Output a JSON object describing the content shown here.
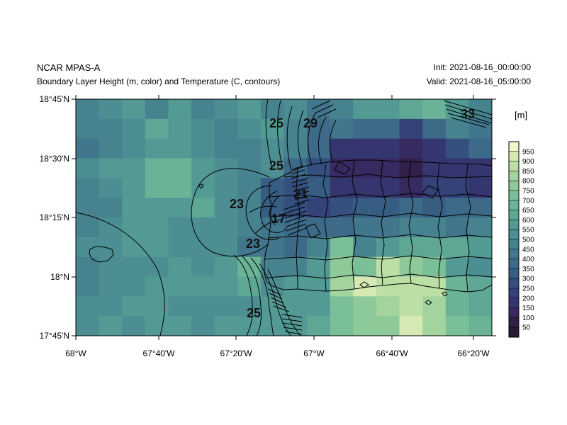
{
  "header": {
    "model": "NCAR MPAS-A",
    "description": "Boundary Layer Height (m, color) and Temperature (C, contours)",
    "init": "Init: 2021-08-16_00:00:00",
    "valid": "Valid: 2021-08-16_05:00:00"
  },
  "colorbar": {
    "units": "[m]",
    "levels": [
      "50",
      "100",
      "150",
      "200",
      "250",
      "300",
      "350",
      "400",
      "450",
      "500",
      "550",
      "600",
      "650",
      "700",
      "750",
      "800",
      "850",
      "900",
      "950"
    ],
    "colors": [
      "#2a1a33",
      "#32204a",
      "#362a60",
      "#35356f",
      "#344277",
      "#35507e",
      "#385d83",
      "#3d6a88",
      "#42768c",
      "#47828f",
      "#4d8e92",
      "#549a94",
      "#5ea795",
      "#6bb396",
      "#7bbf98",
      "#8ec99a",
      "#a4d49e",
      "#bcdfa6",
      "#d5eab3",
      "#eef7c8"
    ]
  },
  "axes": {
    "x_ticks": [
      "68°W",
      "67°40'W",
      "67°20'W",
      "67°W",
      "66°40'W",
      "66°20'W"
    ],
    "y_ticks": [
      "18°45'N",
      "18°30'N",
      "18°15'N",
      "18°N",
      "17°45'N"
    ]
  },
  "contour_labels": [
    "25",
    "29",
    "33",
    "25",
    "21",
    "23",
    "17",
    "23",
    "25"
  ],
  "field_grid": [
    [
      9,
      10,
      11,
      9,
      11,
      9,
      10,
      11,
      9,
      10,
      8,
      9,
      11,
      11,
      12,
      13,
      11,
      9
    ],
    [
      9,
      9,
      10,
      12,
      11,
      10,
      9,
      10,
      11,
      9,
      7,
      8,
      7,
      7,
      4,
      7,
      9,
      8
    ],
    [
      8,
      9,
      10,
      11,
      11,
      10,
      9,
      9,
      10,
      9,
      7,
      3,
      3,
      3,
      2,
      3,
      5,
      7
    ],
    [
      10,
      11,
      11,
      13,
      13,
      11,
      10,
      9,
      10,
      7,
      5,
      2,
      2,
      2,
      1,
      3,
      3,
      3
    ],
    [
      9,
      10,
      11,
      13,
      13,
      11,
      10,
      9,
      6,
      5,
      6,
      3,
      3,
      3,
      2,
      4,
      4,
      3
    ],
    [
      9,
      9,
      11,
      11,
      11,
      12,
      10,
      9,
      6,
      5,
      4,
      5,
      6,
      6,
      7,
      6,
      7,
      7
    ],
    [
      9,
      10,
      11,
      11,
      10,
      10,
      10,
      9,
      8,
      7,
      7,
      7,
      8,
      8,
      9,
      9,
      8,
      9
    ],
    [
      10,
      10,
      11,
      11,
      10,
      10,
      10,
      8,
      8,
      7,
      9,
      14,
      9,
      11,
      12,
      12,
      12,
      11
    ],
    [
      9,
      10,
      10,
      10,
      11,
      10,
      11,
      13,
      9,
      9,
      11,
      15,
      14,
      17,
      15,
      14,
      11,
      10
    ],
    [
      9,
      10,
      10,
      11,
      11,
      11,
      11,
      12,
      10,
      11,
      11,
      16,
      18,
      17,
      17,
      17,
      13,
      12
    ],
    [
      10,
      10,
      11,
      11,
      10,
      10,
      10,
      10,
      11,
      11,
      11,
      14,
      15,
      16,
      17,
      16,
      13,
      12
    ],
    [
      10,
      11,
      10,
      11,
      11,
      10,
      11,
      11,
      11,
      11,
      12,
      14,
      15,
      15,
      18,
      16,
      14,
      13
    ]
  ]
}
